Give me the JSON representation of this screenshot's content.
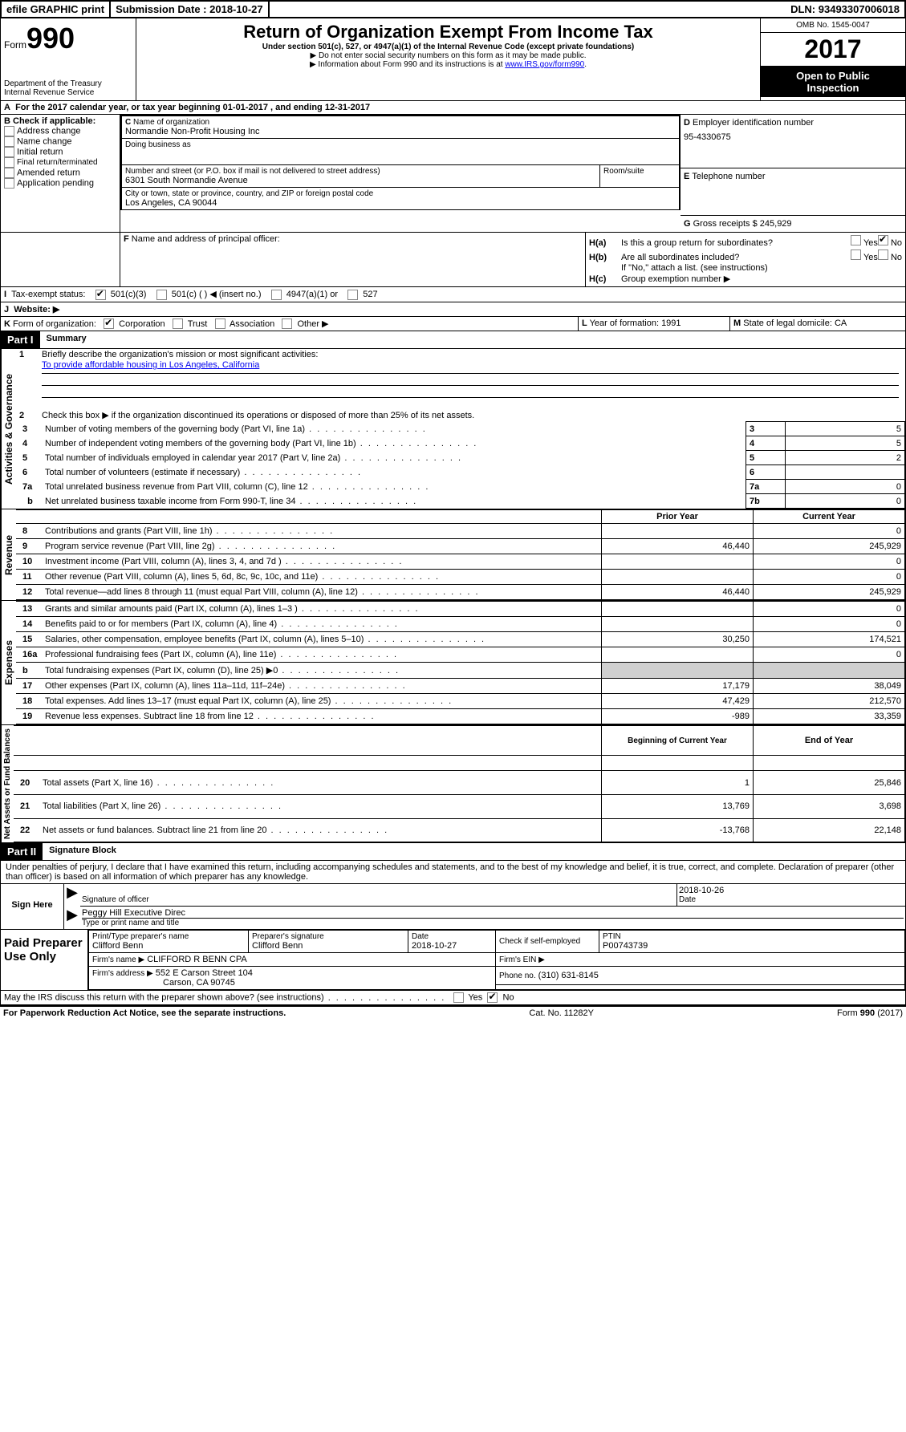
{
  "topbar": {
    "efile": "efile GRAPHIC print",
    "sub_lbl": "Submission Date :",
    "sub_date": "2018-10-27",
    "dln_lbl": "DLN:",
    "dln": "93493307006018"
  },
  "header": {
    "form_word": "Form",
    "form_num": "990",
    "dept1": "Department of the Treasury",
    "dept2": "Internal Revenue Service",
    "title": "Return of Organization Exempt From Income Tax",
    "sub1": "Under section 501(c), 527, or 4947(a)(1) of the Internal Revenue Code (except private foundations)",
    "sub2": "▶ Do not enter social security numbers on this form as it may be made public.",
    "sub3_a": "▶ Information about Form 990 and its instructions is at ",
    "sub3_link": "www.IRS.gov/form990",
    "omb_lbl": "OMB No. 1545-0047",
    "year": "2017",
    "open1": "Open to Public",
    "open2": "Inspection"
  },
  "A": {
    "txt": "For the 2017 calendar year, or tax year beginning 01-01-2017   , and ending 12-31-2017"
  },
  "B": {
    "hdr": "Check if applicable:",
    "opts": [
      "Address change",
      "Name change",
      "Initial return",
      "Final return/terminated",
      "Amended return",
      "Application pending"
    ]
  },
  "C": {
    "name_lbl": "Name of organization",
    "name": "Normandie Non-Profit Housing Inc",
    "dba_lbl": "Doing business as",
    "addr_lbl": "Number and street (or P.O. box if mail is not delivered to street address)",
    "addr": "6301 South Normandie Avenue",
    "room_lbl": "Room/suite",
    "city_lbl": "City or town, state or province, country, and ZIP or foreign postal code",
    "city": "Los Angeles, CA  90044"
  },
  "D": {
    "lbl": "Employer identification number",
    "val": "95-4330675"
  },
  "E": {
    "lbl": "Telephone number"
  },
  "F": {
    "lbl": "Name and address of principal officer:"
  },
  "G": {
    "lbl": "Gross receipts $",
    "val": "245,929"
  },
  "H": {
    "a_lbl": "Is this a group return for subordinates?",
    "b_lbl": "Are all subordinates included?",
    "note": "If \"No,\" attach a list. (see instructions)",
    "c_lbl": "Group exemption number ▶",
    "yes": "Yes",
    "no": "No"
  },
  "I": {
    "lbl": "Tax-exempt status:",
    "o1": "501(c)(3)",
    "o2": "501(c) (  ) ◀ (insert no.)",
    "o3": "4947(a)(1) or",
    "o4": "527"
  },
  "J": {
    "lbl": "Website: ▶"
  },
  "K": {
    "lbl": "Form of organization:",
    "o1": "Corporation",
    "o2": "Trust",
    "o3": "Association",
    "o4": "Other ▶"
  },
  "L": {
    "lbl": "Year of formation:",
    "val": "1991"
  },
  "M": {
    "lbl": "State of legal domicile:",
    "val": "CA"
  },
  "part1": {
    "title": "Part I",
    "name": "Summary",
    "side1": "Activities & Governance",
    "side2": "Revenue",
    "side3": "Expenses",
    "side4": "Net Assets or Fund Balances",
    "l1": "Briefly describe the organization's mission or most significant activities:",
    "l1v": "To provide affordable housing in Los Angeles, California",
    "l2": "Check this box ▶          if the organization discontinued its operations or disposed of more than 25% of its net assets.",
    "l3": "Number of voting members of the governing body (Part VI, line 1a)",
    "l3n": "3",
    "l3v": "5",
    "l4": "Number of independent voting members of the governing body (Part VI, line 1b)",
    "l4n": "4",
    "l4v": "5",
    "l5": "Total number of individuals employed in calendar year 2017 (Part V, line 2a)",
    "l5n": "5",
    "l5v": "2",
    "l6": "Total number of volunteers (estimate if necessary)",
    "l6n": "6",
    "l6v": "",
    "l7a": "Total unrelated business revenue from Part VIII, column (C), line 12",
    "l7an": "7a",
    "l7av": "0",
    "l7b": "Net unrelated business taxable income from Form 990-T, line 34",
    "l7bn": "7b",
    "l7bv": "0",
    "py": "Prior Year",
    "cy": "Current Year",
    "rows_rev": [
      {
        "n": "8",
        "t": "Contributions and grants (Part VIII, line 1h)",
        "py": "",
        "cy": "0"
      },
      {
        "n": "9",
        "t": "Program service revenue (Part VIII, line 2g)",
        "py": "46,440",
        "cy": "245,929"
      },
      {
        "n": "10",
        "t": "Investment income (Part VIII, column (A), lines 3, 4, and 7d )",
        "py": "",
        "cy": "0"
      },
      {
        "n": "11",
        "t": "Other revenue (Part VIII, column (A), lines 5, 6d, 8c, 9c, 10c, and 11e)",
        "py": "",
        "cy": "0"
      },
      {
        "n": "12",
        "t": "Total revenue—add lines 8 through 11 (must equal Part VIII, column (A), line 12)",
        "py": "46,440",
        "cy": "245,929"
      }
    ],
    "rows_exp": [
      {
        "n": "13",
        "t": "Grants and similar amounts paid (Part IX, column (A), lines 1–3 )",
        "py": "",
        "cy": "0"
      },
      {
        "n": "14",
        "t": "Benefits paid to or for members (Part IX, column (A), line 4)",
        "py": "",
        "cy": "0"
      },
      {
        "n": "15",
        "t": "Salaries, other compensation, employee benefits (Part IX, column (A), lines 5–10)",
        "py": "30,250",
        "cy": "174,521"
      },
      {
        "n": "16a",
        "t": "Professional fundraising fees (Part IX, column (A), line 11e)",
        "py": "",
        "cy": "0"
      },
      {
        "n": "b",
        "t": "Total fundraising expenses (Part IX, column (D), line 25) ▶0",
        "py": "shade",
        "cy": "shade"
      },
      {
        "n": "17",
        "t": "Other expenses (Part IX, column (A), lines 11a–11d, 11f–24e)",
        "py": "17,179",
        "cy": "38,049"
      },
      {
        "n": "18",
        "t": "Total expenses. Add lines 13–17 (must equal Part IX, column (A), line 25)",
        "py": "47,429",
        "cy": "212,570"
      },
      {
        "n": "19",
        "t": "Revenue less expenses. Subtract line 18 from line 12",
        "py": "-989",
        "cy": "33,359"
      }
    ],
    "bcy": "Beginning of Current Year",
    "ey": "End of Year",
    "rows_net": [
      {
        "n": "20",
        "t": "Total assets (Part X, line 16)",
        "py": "1",
        "cy": "25,846"
      },
      {
        "n": "21",
        "t": "Total liabilities (Part X, line 26)",
        "py": "13,769",
        "cy": "3,698"
      },
      {
        "n": "22",
        "t": "Net assets or fund balances. Subtract line 21 from line 20",
        "py": "-13,768",
        "cy": "22,148"
      }
    ]
  },
  "part2": {
    "title": "Part II",
    "name": "Signature Block",
    "perjury": "Under penalties of perjury, I declare that I have examined this return, including accompanying schedules and statements, and to the best of my knowledge and belief, it is true, correct, and complete. Declaration of preparer (other than officer) is based on all information of which preparer has any knowledge.",
    "sign_here": "Sign Here",
    "sig_lbl": "Signature of officer",
    "date_lbl": "Date",
    "date": "2018-10-26",
    "name_title": "Peggy Hill  Executive Direc",
    "name_title_lbl": "Type or print name and title",
    "paid": "Paid Preparer Use Only",
    "prep_name_lbl": "Print/Type preparer's name",
    "prep_name": "Clifford Benn",
    "prep_sig_lbl": "Preparer's signature",
    "prep_sig": "Clifford Benn",
    "prep_date": "2018-10-27",
    "check_lbl": "Check        if self-employed",
    "ptin_lbl": "PTIN",
    "ptin": "P00743739",
    "firm_name_lbl": "Firm's name    ▶",
    "firm_name": "CLIFFORD R BENN CPA",
    "firm_ein_lbl": "Firm's EIN ▶",
    "firm_addr_lbl": "Firm's address ▶",
    "firm_addr1": "552 E Carson Street 104",
    "firm_addr2": "Carson, CA  90745",
    "phone_lbl": "Phone no.",
    "phone": "(310) 631-8145",
    "discuss": "May the IRS discuss this return with the preparer shown above? (see instructions)"
  },
  "footer": {
    "pra": "For Paperwork Reduction Act Notice, see the separate instructions.",
    "cat": "Cat. No. 11282Y",
    "form": "Form 990 (2017)"
  }
}
